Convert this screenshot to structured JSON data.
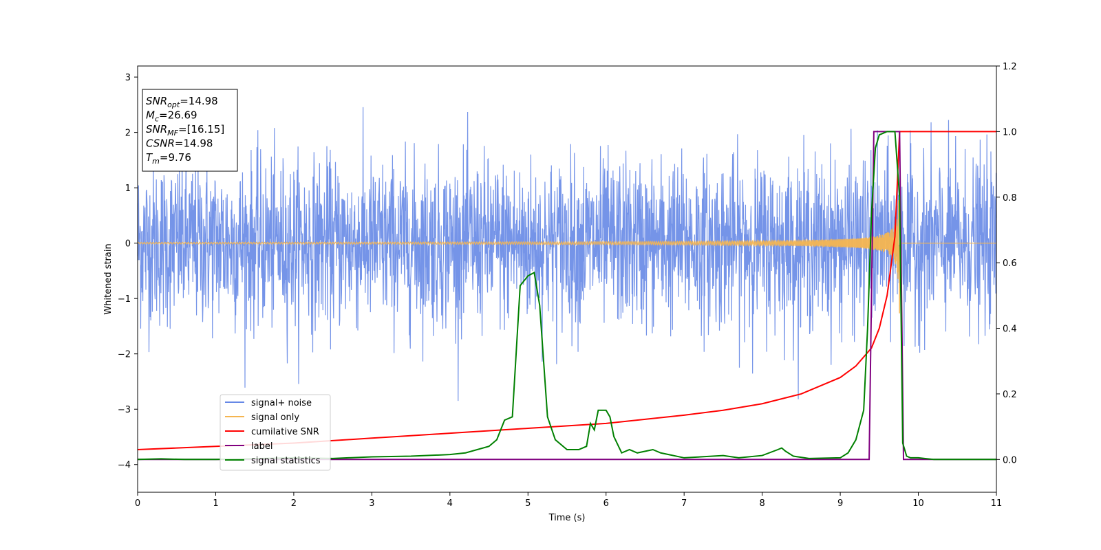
{
  "chart_data": {
    "type": "line",
    "xlabel": "Time (s)",
    "ylabel": "Whitened strain",
    "xlim": [
      0,
      11
    ],
    "ylim_left": [
      -4.5,
      3.2
    ],
    "ylim_right": [
      -0.1,
      1.2
    ],
    "x_ticks": [
      "0",
      "1",
      "2",
      "3",
      "4",
      "5",
      "6",
      "7",
      "8",
      "9",
      "10",
      "11"
    ],
    "y_ticks_left": [
      "3",
      "2",
      "1",
      "0",
      "−1",
      "−2",
      "−3",
      "−4"
    ],
    "y_ticks_right": [
      "1.2",
      "1.0",
      "0.8",
      "0.6",
      "0.4",
      "0.2",
      "0.0"
    ],
    "grid": false,
    "legend_position": "lower-left",
    "annotation": {
      "lines": [
        {
          "base": "SNR",
          "sub": "opt",
          "rest": "=14.98"
        },
        {
          "base": "M",
          "sub": "c",
          "rest": "=26.69"
        },
        {
          "base": "SNR",
          "sub": "MF",
          "rest": "=[16.15]"
        },
        {
          "base": "CSNR",
          "sub": "",
          "rest": "=14.98"
        },
        {
          "base": "T",
          "sub": "m",
          "rest": "=9.76"
        }
      ]
    },
    "series": [
      {
        "name": "signal+ noise",
        "axis": "left",
        "color": "#6688e6",
        "description": "white noise, std about 0.75, peaks about 2.9 and -2.9",
        "noise_std": 0.75
      },
      {
        "name": "signal only",
        "axis": "left",
        "color": "#f5b550",
        "description": "chirp, amplitude grows until merger at about 9.76 s, then zero",
        "merger_time": 9.76
      },
      {
        "name": "cumilative SNR",
        "axis": "right",
        "color": "#ff0000",
        "x": [
          0,
          1,
          2,
          3,
          4,
          5,
          6,
          7,
          7.5,
          8,
          8.5,
          9,
          9.2,
          9.4,
          9.5,
          9.6,
          9.7,
          9.76,
          11
        ],
        "y": [
          0.03,
          0.04,
          0.05,
          0.065,
          0.08,
          0.095,
          0.11,
          0.135,
          0.15,
          0.17,
          0.2,
          0.25,
          0.285,
          0.34,
          0.4,
          0.5,
          0.68,
          1.0,
          1.0
        ]
      },
      {
        "name": "label",
        "axis": "right",
        "color": "#800080",
        "x": [
          0,
          9.37,
          9.43,
          9.76,
          9.81,
          11
        ],
        "y": [
          0,
          0,
          1.0,
          1.0,
          0,
          0
        ]
      },
      {
        "name": "signal statistics",
        "axis": "right",
        "color": "#008000",
        "x": [
          0,
          0.3,
          0.6,
          1.0,
          2.0,
          2.5,
          3.0,
          3.5,
          4.0,
          4.2,
          4.5,
          4.6,
          4.7,
          4.8,
          4.9,
          5.0,
          5.08,
          5.15,
          5.25,
          5.35,
          5.5,
          5.65,
          5.75,
          5.8,
          5.85,
          5.9,
          6.0,
          6.05,
          6.1,
          6.2,
          6.3,
          6.4,
          6.6,
          6.7,
          6.8,
          7.0,
          7.5,
          7.7,
          8.0,
          8.2,
          8.25,
          8.3,
          8.4,
          8.6,
          9.0,
          9.1,
          9.2,
          9.3,
          9.35,
          9.4,
          9.45,
          9.5,
          9.6,
          9.7,
          9.76,
          9.8,
          9.85,
          9.9,
          10.0,
          10.2,
          11.0
        ],
        "y": [
          0.0,
          0.002,
          0.0,
          0.0,
          0.005,
          0.003,
          0.008,
          0.01,
          0.015,
          0.02,
          0.04,
          0.06,
          0.12,
          0.13,
          0.53,
          0.56,
          0.57,
          0.47,
          0.13,
          0.06,
          0.03,
          0.03,
          0.04,
          0.11,
          0.09,
          0.15,
          0.15,
          0.13,
          0.07,
          0.02,
          0.03,
          0.02,
          0.03,
          0.02,
          0.015,
          0.005,
          0.012,
          0.005,
          0.012,
          0.03,
          0.035,
          0.025,
          0.01,
          0.003,
          0.005,
          0.02,
          0.06,
          0.15,
          0.4,
          0.75,
          0.95,
          0.99,
          1.0,
          1.0,
          0.8,
          0.05,
          0.01,
          0.005,
          0.005,
          0.0,
          0.0
        ]
      }
    ]
  }
}
